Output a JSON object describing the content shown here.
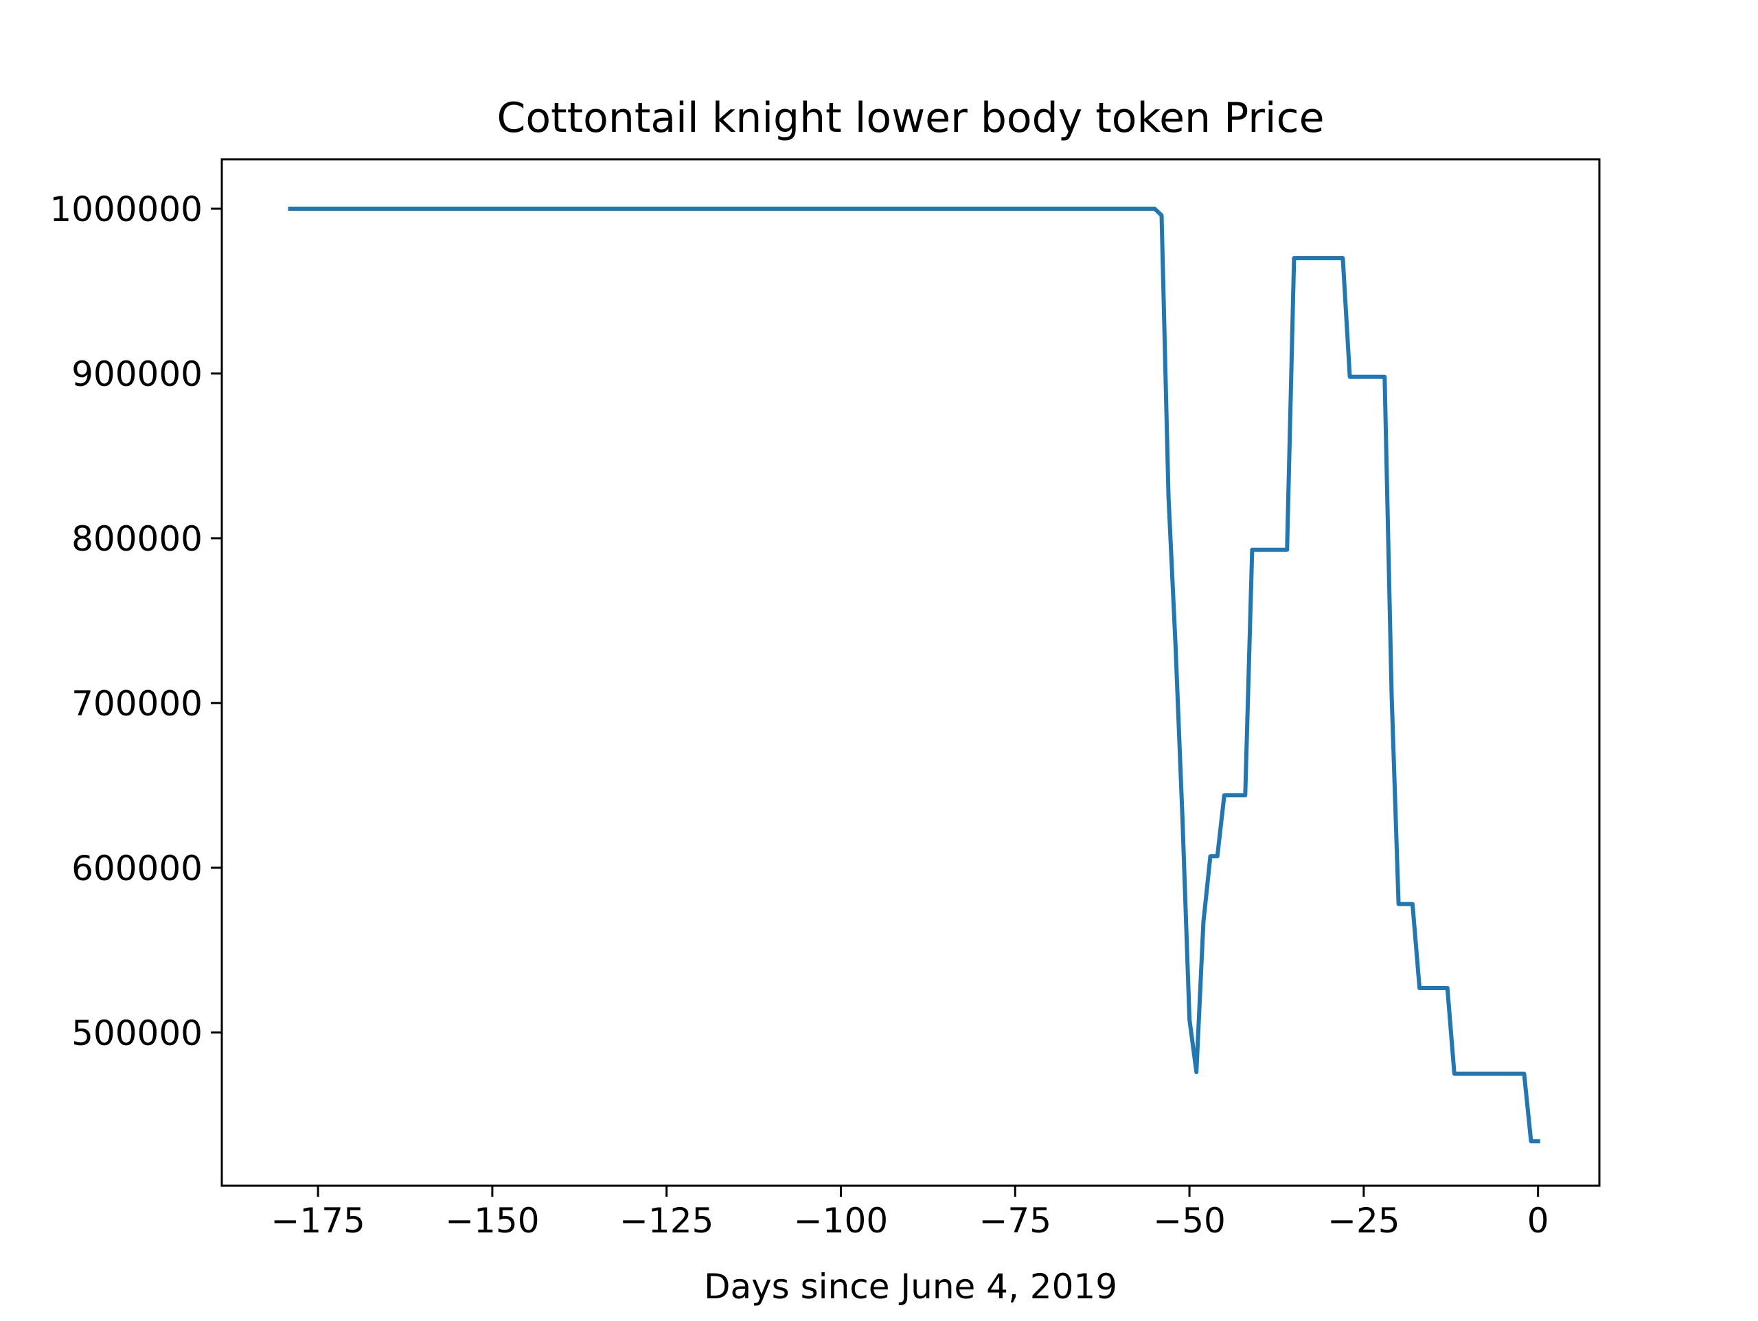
{
  "chart_data": {
    "type": "line",
    "title": "Cottontail knight lower body token Price",
    "xlabel": "Days since June 4, 2019",
    "ylabel": "",
    "xlim": [
      -188.8,
      8.8
    ],
    "ylim": [
      407000,
      1030000
    ],
    "xticks": [
      -175,
      -150,
      -125,
      -100,
      -75,
      -50,
      -25,
      0
    ],
    "xtick_labels": [
      "−175",
      "−150",
      "−125",
      "−100",
      "−75",
      "−50",
      "−25",
      "0"
    ],
    "yticks": [
      500000,
      600000,
      700000,
      800000,
      900000,
      1000000
    ],
    "ytick_labels": [
      "500000",
      "600000",
      "700000",
      "800000",
      "900000",
      "1000000"
    ],
    "grid": false,
    "legend": "none",
    "series": [
      {
        "color": "#1f77b4",
        "x": [
          -179,
          -55,
          -54,
          -53,
          -52,
          -51,
          -50,
          -49,
          -48,
          -47,
          -46,
          -45,
          -42,
          -41,
          -36,
          -35,
          -28,
          -27,
          -22,
          -21,
          -20,
          -18,
          -17,
          -13,
          -12,
          -2,
          -1,
          0
        ],
        "y": [
          1000000,
          1000000,
          996000,
          825000,
          735000,
          630000,
          508000,
          476000,
          567000,
          607000,
          607000,
          644000,
          644000,
          793000,
          793000,
          970000,
          970000,
          898000,
          898000,
          705000,
          578000,
          578000,
          527000,
          527000,
          475000,
          475000,
          434000,
          434000
        ]
      }
    ]
  }
}
